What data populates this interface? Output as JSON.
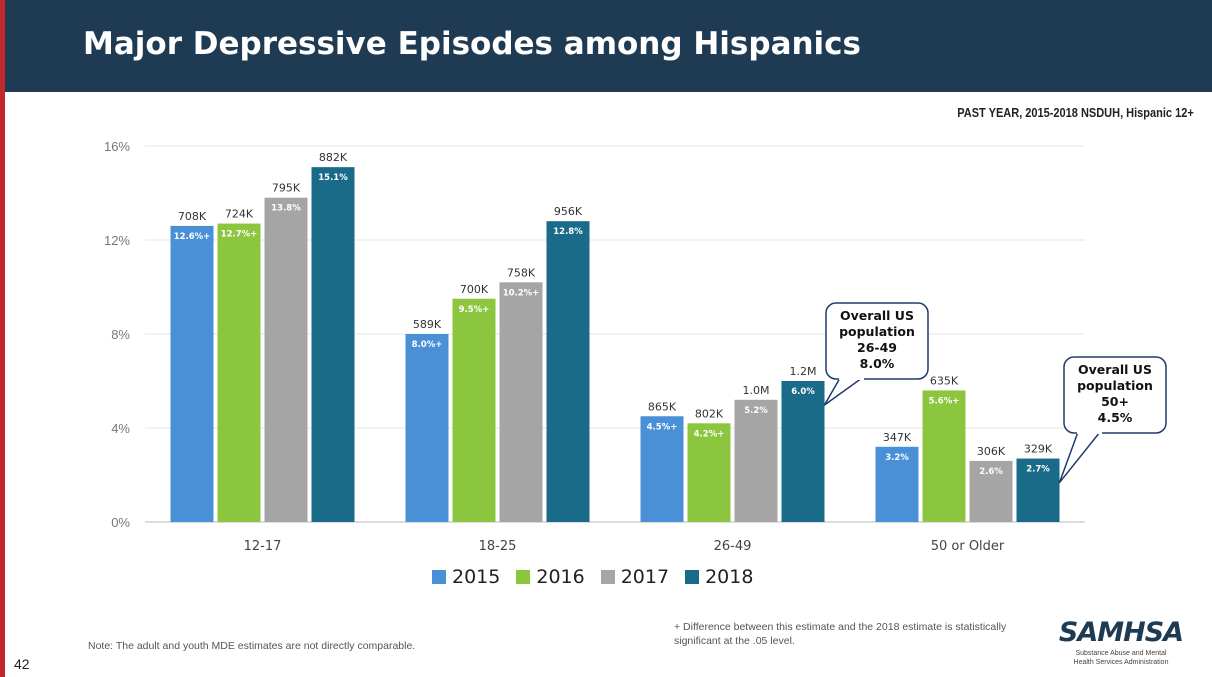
{
  "header": {
    "title": "Major Depressive Episodes among Hispanics"
  },
  "subtitle": "PAST YEAR, 2015-2018 NSDUH, Hispanic 12+",
  "colors": {
    "2015": "#4a90d6",
    "2016": "#8cc63f",
    "2017": "#a5a5a5",
    "2018": "#1a6a8a"
  },
  "chart_data": {
    "type": "bar",
    "categories": [
      "12-17",
      "18-25",
      "26-49",
      "50 or Older"
    ],
    "ylim": [
      0,
      16
    ],
    "yticks": [
      0,
      4,
      8,
      12,
      16
    ],
    "ytick_labels": [
      "0%",
      "4%",
      "8%",
      "12%",
      "16%"
    ],
    "grid": true,
    "legend_position": "bottom",
    "series": [
      {
        "name": "2015",
        "values": [
          12.6,
          8.0,
          4.5,
          3.2
        ],
        "labels": [
          "12.6%+",
          "8.0%+",
          "4.5%+",
          "3.2%"
        ],
        "counts": [
          "708K",
          "589K",
          "865K",
          "347K"
        ]
      },
      {
        "name": "2016",
        "values": [
          12.7,
          9.5,
          4.2,
          5.6
        ],
        "labels": [
          "12.7%+",
          "9.5%+",
          "4.2%+",
          "5.6%+"
        ],
        "counts": [
          "724K",
          "700K",
          "802K",
          "635K"
        ]
      },
      {
        "name": "2017",
        "values": [
          13.8,
          10.2,
          5.2,
          2.6
        ],
        "labels": [
          "13.8%",
          "10.2%+",
          "5.2%",
          "2.6%"
        ],
        "counts": [
          "795K",
          "758K",
          "1.0M",
          "306K"
        ]
      },
      {
        "name": "2018",
        "values": [
          15.1,
          12.8,
          6.0,
          2.7
        ],
        "labels": [
          "15.1%",
          "12.8%",
          "6.0%",
          "2.7%"
        ],
        "counts": [
          "882K",
          "956K",
          "1.2M",
          "329K"
        ]
      }
    ],
    "annotations": [
      {
        "category": "26-49",
        "lines": [
          "Overall US",
          "population",
          "26-49",
          "8.0%"
        ]
      },
      {
        "category": "50 or Older",
        "lines": [
          "Overall US",
          "population",
          "50+",
          "4.5%"
        ]
      }
    ]
  },
  "footer": {
    "note": "Note: The adult and youth MDE estimates are not directly comparable.",
    "significance_note": "+ Difference between this estimate and the 2018 estimate is statistically significant at the .05 level.",
    "page_number": "42",
    "logo": "SAMHSA",
    "logo_subtitle": "Substance Abuse and Mental Health Services Administration"
  }
}
